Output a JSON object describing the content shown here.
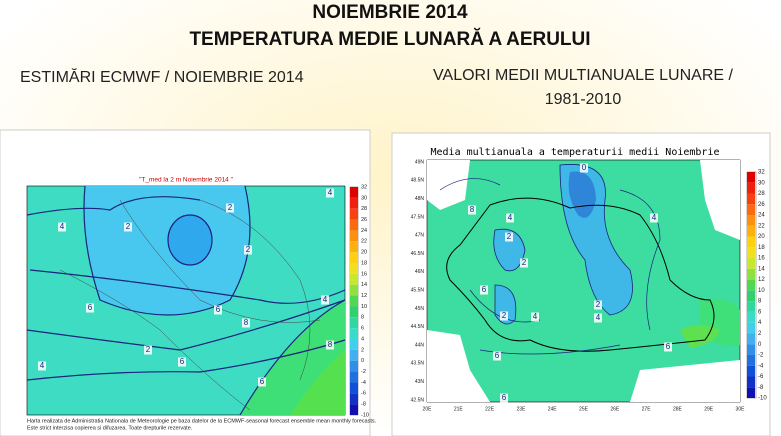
{
  "header": {
    "title": "NOIEMBRIE 2014",
    "subtitle": "TEMPERATURA MEDIE LUNARĂ A AERULUI"
  },
  "left": {
    "heading": "ESTIMĂRI ECMWF / NOIEMBRIE 2014",
    "map_title": "\"T_med la 2 m Noiembrie 2014 \"",
    "footnote": [
      "Harta realizata de Administratia Nationala de Meteorologie pe baza datelor de la ECMWF-seasonal forecast ensemble mean monthly forecasts.",
      "Este strict interzisa copierea si difuzarea. Toate drepturile rezervate."
    ],
    "colorbar": [
      "32",
      "30",
      "28",
      "26",
      "24",
      "22",
      "20",
      "18",
      "16",
      "14",
      "12",
      "10",
      "8",
      "6",
      "4",
      "2",
      "0",
      "-2",
      "-4",
      "-6",
      "-8",
      "-10"
    ],
    "contour_labels": [
      "4",
      "2",
      "2",
      "4",
      "6",
      "6",
      "8",
      "2",
      "4",
      "6",
      "8",
      "2",
      "4",
      "6"
    ]
  },
  "right": {
    "heading": [
      "VALORI MEDII MULTIANUALE LUNARE /",
      "1981-2010"
    ],
    "map_title": "Media multianuala a temperaturii medii Noiembrie",
    "colorbar": [
      "32",
      "30",
      "28",
      "26",
      "24",
      "22",
      "20",
      "18",
      "16",
      "14",
      "12",
      "10",
      "8",
      "6",
      "4",
      "2",
      "0",
      "-2",
      "-4",
      "-6",
      "-8",
      "-10"
    ],
    "lat_labels": [
      "49N",
      "48.5N",
      "48N",
      "47.5N",
      "47N",
      "46.5N",
      "46N",
      "45.5N",
      "45N",
      "44.5N",
      "44N",
      "43.5N",
      "43N",
      "42.5N"
    ],
    "lon_labels": [
      "20E",
      "21E",
      "22E",
      "23E",
      "24E",
      "25E",
      "26E",
      "27E",
      "28E",
      "29E",
      "30E"
    ],
    "contour_labels": [
      "0",
      "8",
      "4",
      "4",
      "2",
      "2",
      "6",
      "2",
      "4",
      "2",
      "4",
      "6",
      "6",
      "6"
    ]
  }
}
